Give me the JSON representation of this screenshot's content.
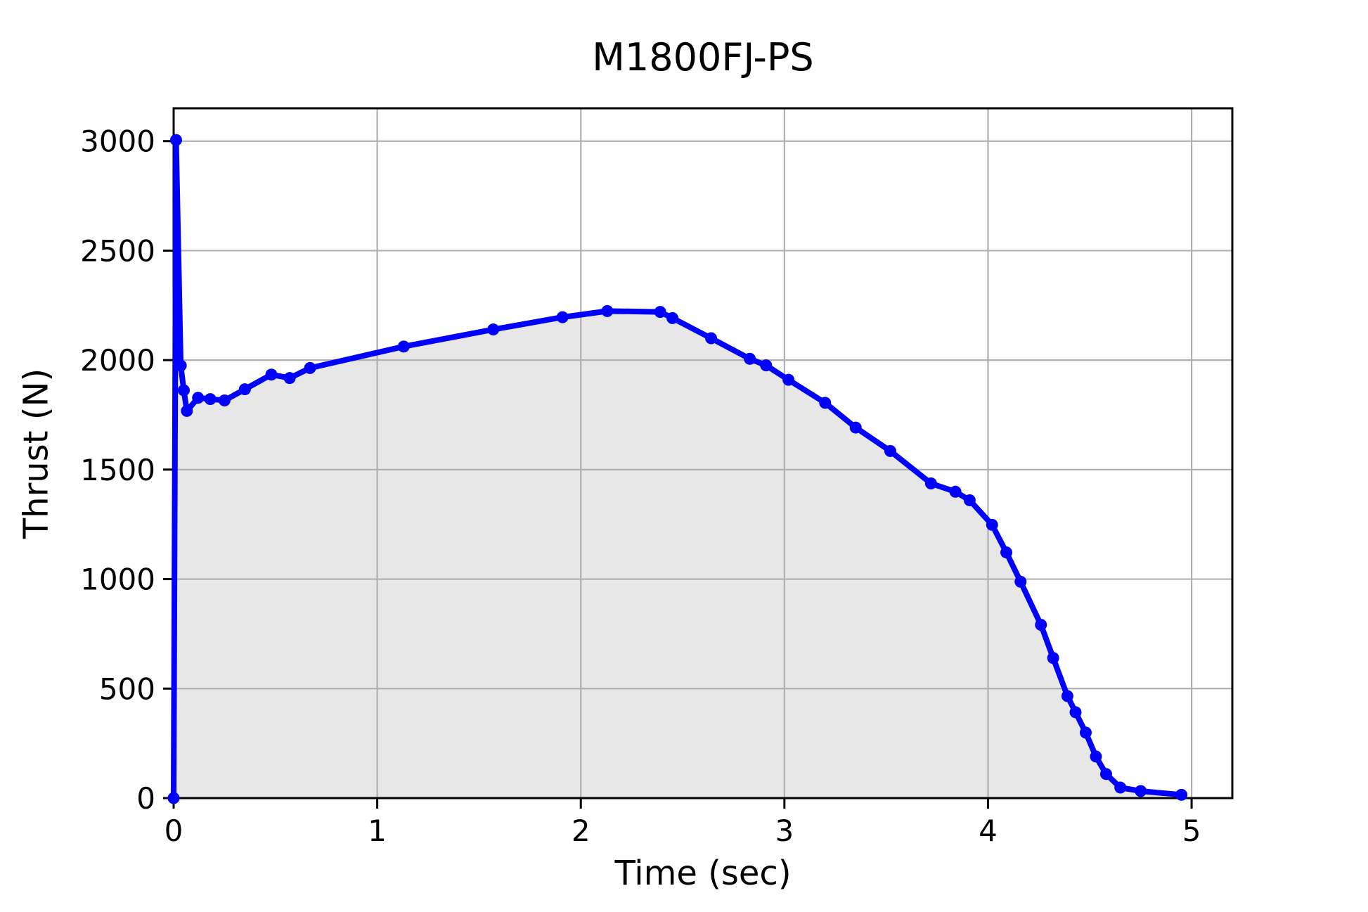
{
  "chart_data": {
    "type": "area",
    "title": "M1800FJ-PS",
    "xlabel": "Time (sec)",
    "ylabel": "Thrust (N)",
    "series": [
      {
        "name": "Thrust (N)",
        "x": [
          0.0,
          0.012,
          0.035,
          0.05,
          0.065,
          0.12,
          0.18,
          0.25,
          0.35,
          0.48,
          0.57,
          0.67,
          1.13,
          1.57,
          1.91,
          2.13,
          2.39,
          2.45,
          2.64,
          2.83,
          2.91,
          3.02,
          3.2,
          3.35,
          3.52,
          3.72,
          3.84,
          3.91,
          4.02,
          4.09,
          4.16,
          4.26,
          4.32,
          4.39,
          4.43,
          4.48,
          4.53,
          4.58,
          4.65,
          4.75,
          4.95
        ],
        "y": [
          0,
          3005,
          1975,
          1862,
          1768,
          1828,
          1822,
          1816,
          1867,
          1934,
          1918,
          1964,
          2062,
          2140,
          2196,
          2224,
          2220,
          2192,
          2100,
          2006,
          1976,
          1910,
          1805,
          1692,
          1585,
          1437,
          1399,
          1360,
          1248,
          1122,
          988,
          791,
          640,
          466,
          392,
          299,
          190,
          110,
          48,
          32,
          15
        ]
      }
    ],
    "xlim": [
      0,
      5.2
    ],
    "ylim": [
      0,
      3150
    ],
    "xticks": [
      "0",
      "1",
      "2",
      "3",
      "4",
      "5"
    ],
    "xtick_values": [
      0,
      1,
      2,
      3,
      4,
      5
    ],
    "yticks": [
      "0",
      "500",
      "1000",
      "1500",
      "2000",
      "2500",
      "3000"
    ],
    "ytick_values": [
      0,
      500,
      1000,
      1500,
      2000,
      2500,
      3000
    ],
    "grid": true,
    "legend": false,
    "style": {
      "line_color": "#0000ff",
      "marker": "circle",
      "fill_color": "#e7e7e7",
      "grid_color": "#b0b0b0",
      "spine_color": "#000000",
      "background": "#ffffff",
      "text_color": "#000000"
    }
  }
}
